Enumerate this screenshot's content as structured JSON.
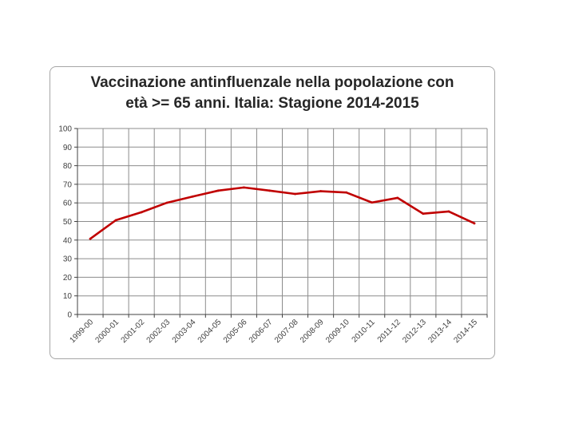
{
  "chart_data": {
    "type": "line",
    "title_lines": [
      "Vaccinazione antinfluenzale nella popolazione con",
      "età >= 65 anni. Italia: Stagione 2014-2015"
    ],
    "categories": [
      "1999-00",
      "2000-01",
      "2001-02",
      "2002-03",
      "2003-04",
      "2004-05",
      "2005-06",
      "2006-07",
      "2007-08",
      "2008-09",
      "2009-10",
      "2010-11",
      "2011-12",
      "2012-13",
      "2013-14",
      "2014-15"
    ],
    "series": [
      {
        "values": [
          40.7,
          50.7,
          55.0,
          60.1,
          63.4,
          66.6,
          68.3,
          66.6,
          64.8,
          66.3,
          65.6,
          60.2,
          62.7,
          54.2,
          55.4,
          49.0
        ]
      }
    ],
    "ylim": [
      0,
      100
    ],
    "yticks": [
      0,
      10,
      20,
      30,
      40,
      50,
      60,
      70,
      80,
      90,
      100
    ],
    "grid": true,
    "line_color": "#c00000",
    "grid_color": "#8c8c8c"
  }
}
